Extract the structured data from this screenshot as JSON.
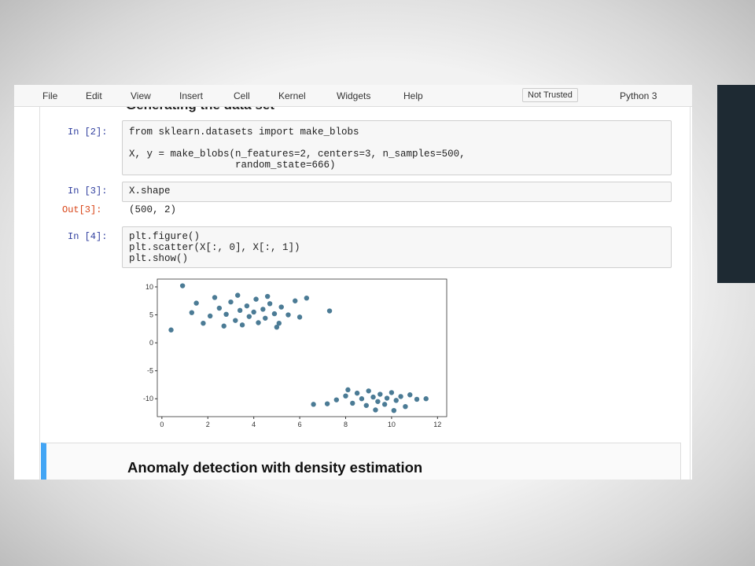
{
  "menu": [
    "File",
    "Edit",
    "View",
    "Insert",
    "Cell",
    "Kernel",
    "Widgets",
    "Help"
  ],
  "trust_badge": "Not Trusted",
  "kernel": "Python 3",
  "top_heading": "Generating the data set",
  "cells": [
    {
      "prompt": "In [2]:",
      "lines": [
        "from sklearn.datasets import make_blobs",
        "X, y = make_blobs(n_features=2, centers=3, n_samples=500,",
        "                  random_state=666)"
      ]
    },
    {
      "prompt": "In [3]:",
      "lines": [
        "X.shape"
      ],
      "out_prompt": "Out[3]:",
      "output": "(500, 2)"
    },
    {
      "prompt": "In [4]:",
      "lines": [
        "plt.figure()",
        "plt.scatter(X[:, 0], X[:, 1])",
        "plt.show()"
      ]
    }
  ],
  "markdown_heading": "Anomaly detection with density estimation",
  "chart_data": {
    "type": "scatter",
    "color": "#4b7b95",
    "xlim": [
      -0.2,
      12.4
    ],
    "ylim": [
      -13.2,
      11.4
    ],
    "xticks": [
      0,
      2,
      4,
      6,
      8,
      10,
      12
    ],
    "yticks": [
      -10,
      -5,
      0,
      5,
      10
    ],
    "x": [
      2.1,
      2.5,
      2.8,
      3.0,
      3.2,
      3.4,
      3.5,
      3.7,
      3.8,
      4.0,
      4.1,
      4.2,
      4.4,
      4.5,
      4.7,
      4.9,
      5.1,
      5.2,
      5.5,
      5.8,
      6.0,
      1.5,
      1.8,
      2.3,
      3.3,
      4.6,
      6.3,
      5.0,
      2.7,
      1.3,
      7.6,
      8.0,
      8.3,
      8.5,
      8.7,
      8.9,
      9.0,
      9.2,
      9.4,
      9.5,
      9.7,
      9.8,
      10.0,
      10.2,
      10.4,
      10.6,
      10.8,
      11.1,
      11.5,
      8.1,
      9.3,
      10.1,
      7.2,
      0.9,
      0.4,
      7.3,
      6.6
    ],
    "values": [
      4.8,
      6.2,
      5.1,
      7.3,
      4.0,
      5.8,
      3.2,
      6.6,
      4.7,
      5.5,
      7.8,
      3.6,
      6.0,
      4.4,
      7.0,
      5.2,
      3.5,
      6.4,
      5.0,
      7.5,
      4.6,
      7.1,
      3.5,
      8.1,
      8.5,
      8.3,
      8.0,
      2.8,
      3.0,
      5.4,
      -10.2,
      -9.5,
      -10.8,
      -9.0,
      -10.0,
      -11.2,
      -8.6,
      -9.7,
      -10.5,
      -9.2,
      -11.0,
      -9.9,
      -8.9,
      -10.3,
      -9.6,
      -11.4,
      -9.3,
      -10.1,
      -10.0,
      -8.4,
      -12.0,
      -12.1,
      -10.9,
      10.2,
      2.3,
      5.7,
      -11.0
    ]
  }
}
